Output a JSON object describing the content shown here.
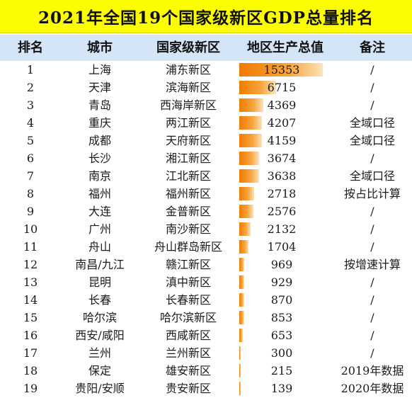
{
  "title": "2021年全国19个国家级新区GDP总量排名",
  "headers": {
    "rank": "排名",
    "city": "城市",
    "district": "国家级新区",
    "gdp": "地区生产总值",
    "note": "备注"
  },
  "chart_data": {
    "type": "table",
    "title": "2021年全国19个国家级新区GDP总量排名",
    "columns": [
      "排名",
      "城市",
      "国家级新区",
      "地区生产总值",
      "备注"
    ],
    "rows": [
      {
        "rank": "1",
        "city": "上海",
        "district": "浦东新区",
        "gdp": 15353,
        "note": "/"
      },
      {
        "rank": "2",
        "city": "天津",
        "district": "滨海新区",
        "gdp": 6715,
        "note": "/"
      },
      {
        "rank": "3",
        "city": "青岛",
        "district": "西海岸新区",
        "gdp": 4369,
        "note": "/"
      },
      {
        "rank": "4",
        "city": "重庆",
        "district": "两江新区",
        "gdp": 4207,
        "note": "全域口径"
      },
      {
        "rank": "5",
        "city": "成都",
        "district": "天府新区",
        "gdp": 4159,
        "note": "全域口径"
      },
      {
        "rank": "6",
        "city": "长沙",
        "district": "湘江新区",
        "gdp": 3674,
        "note": "/"
      },
      {
        "rank": "7",
        "city": "南京",
        "district": "江北新区",
        "gdp": 3638,
        "note": "全域口径"
      },
      {
        "rank": "8",
        "city": "福州",
        "district": "福州新区",
        "gdp": 2718,
        "note": "按占比计算"
      },
      {
        "rank": "9",
        "city": "大连",
        "district": "金普新区",
        "gdp": 2576,
        "note": "/"
      },
      {
        "rank": "10",
        "city": "广州",
        "district": "南沙新区",
        "gdp": 2132,
        "note": "/"
      },
      {
        "rank": "11",
        "city": "舟山",
        "district": "舟山群岛新区",
        "gdp": 1704,
        "note": "/"
      },
      {
        "rank": "12",
        "city": "南昌/九江",
        "district": "赣江新区",
        "gdp": 969,
        "note": "按增速计算"
      },
      {
        "rank": "13",
        "city": "昆明",
        "district": "滇中新区",
        "gdp": 929,
        "note": "/"
      },
      {
        "rank": "14",
        "city": "长春",
        "district": "长春新区",
        "gdp": 870,
        "note": "/"
      },
      {
        "rank": "15",
        "city": "哈尔滨",
        "district": "哈尔滨新区",
        "gdp": 853,
        "note": "/"
      },
      {
        "rank": "16",
        "city": "西安/咸阳",
        "district": "西咸新区",
        "gdp": 653,
        "note": "/"
      },
      {
        "rank": "17",
        "city": "兰州",
        "district": "兰州新区",
        "gdp": 300,
        "note": "/"
      },
      {
        "rank": "18",
        "city": "保定",
        "district": "雄安新区",
        "gdp": 215,
        "note": "2019年数据"
      },
      {
        "rank": "19",
        "city": "贵阳/安顺",
        "district": "贵安新区",
        "gdp": 139,
        "note": "2020年数据"
      }
    ],
    "bar_max": 15353,
    "bar_color": "#f07a00"
  }
}
